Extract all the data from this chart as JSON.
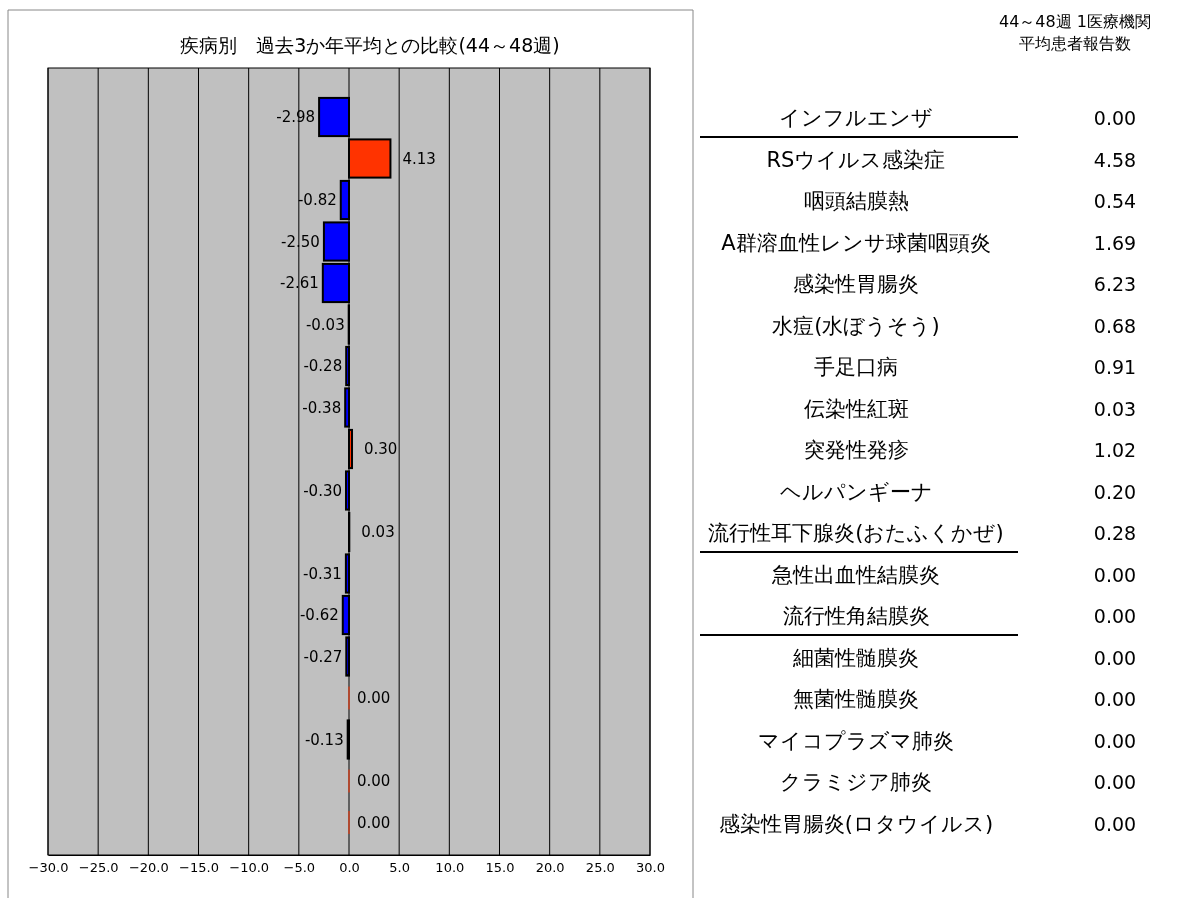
{
  "chart_data": {
    "type": "bar",
    "orientation": "horizontal",
    "title": "疾病別　過去3か年平均との比較(44～48週)",
    "categories": [
      "インフルエンザ",
      "RSウイルス感染症",
      "咽頭結膜熱",
      "A群溶血性レンサ球菌咽頭炎",
      "感染性胃腸炎",
      "水痘(水ぼうそう)",
      "手足口病",
      "伝染性紅斑",
      "突発性発疹",
      "ヘルパンギーナ",
      "流行性耳下腺炎(おたふくかぜ)",
      "急性出血性結膜炎",
      "流行性角結膜炎",
      "細菌性髄膜炎",
      "無菌性髄膜炎",
      "マイコプラズマ肺炎",
      "クラミジア肺炎",
      "感染性胃腸炎(ロタウイルス)"
    ],
    "values": [
      -2.98,
      4.13,
      -0.82,
      -2.5,
      -2.61,
      -0.03,
      -0.28,
      -0.38,
      0.3,
      -0.3,
      0.03,
      -0.31,
      -0.62,
      -0.27,
      0.0,
      -0.13,
      0.0,
      0.0
    ],
    "colors": [
      "#0000ff",
      "#ff3300",
      "#0000ff",
      "#0000ff",
      "#0000ff",
      "#0000ff",
      "#0000ff",
      "#0000ff",
      "#ff3300",
      "#0000ff",
      "#ff3300",
      "#0000ff",
      "#0000ff",
      "#0000ff",
      "#ff3300",
      "#0000ff",
      "#ff3300",
      "#ff3300"
    ],
    "value_labels": [
      "-2.98",
      "4.13",
      "-0.82",
      "-2.50",
      "-2.61",
      "-0.03",
      "-0.28",
      "-0.38",
      "0.30",
      "-0.30",
      "0.03",
      "-0.31",
      "-0.62",
      "-0.27",
      "0.00",
      "-0.13",
      "0.00",
      "0.00"
    ],
    "xlim": [
      -30,
      30
    ],
    "xticks": [
      {
        "value": -30,
        "label": "−30.0"
      },
      {
        "value": -25,
        "label": "−25.0"
      },
      {
        "value": -20,
        "label": "−20.0"
      },
      {
        "value": -15,
        "label": "−15.0"
      },
      {
        "value": -10,
        "label": "−10.0"
      },
      {
        "value": -5,
        "label": "−5.0"
      },
      {
        "value": 0,
        "label": "0.0"
      },
      {
        "value": 5,
        "label": "5.0"
      },
      {
        "value": 10,
        "label": "10.0"
      },
      {
        "value": 15,
        "label": "15.0"
      },
      {
        "value": 20,
        "label": "20.0"
      },
      {
        "value": 25,
        "label": "25.0"
      },
      {
        "value": 30,
        "label": "30.0"
      }
    ],
    "grid": "x",
    "annotations": [
      "44～48週 1医療機関",
      "平均患者報告数",
      "0.00",
      "4.58",
      "0.54",
      "1.69",
      "6.23",
      "0.68",
      "0.91",
      "0.03",
      "1.02",
      "0.20",
      "0.28",
      "0.00",
      "0.00",
      "0.00",
      "0.00",
      "0.00",
      "0.00",
      "0.00"
    ]
  }
}
